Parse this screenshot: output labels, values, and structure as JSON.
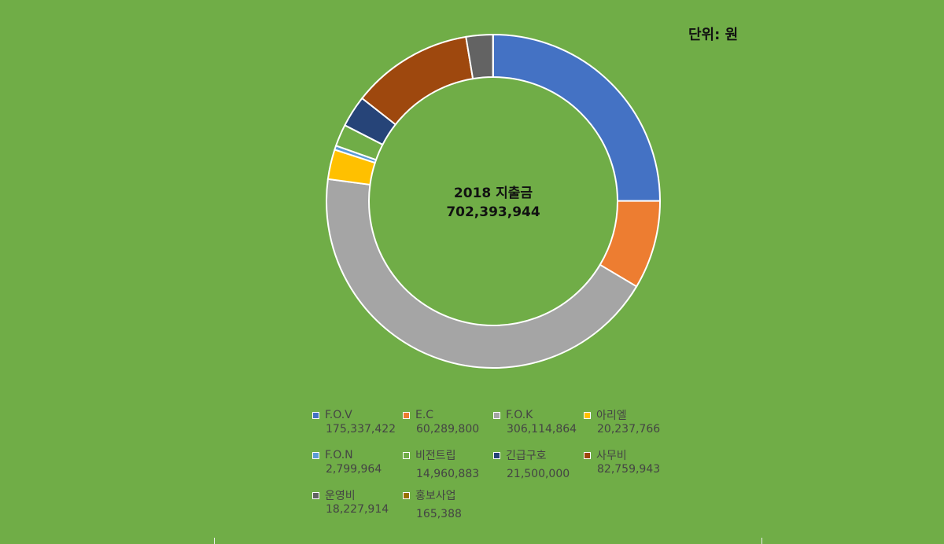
{
  "unit_label": "단위: 원",
  "chart_data": {
    "type": "pie",
    "donut": true,
    "center_title": "2018 지출금",
    "center_value": "702,393,944",
    "legend_placement": "bottom",
    "slices": [
      {
        "name": "F.O.V",
        "value": 175337422,
        "value_label": "175,337,422",
        "color": "#4472C4"
      },
      {
        "name": "E.C",
        "value": 60289800,
        "value_label": "60,289,800",
        "color": "#ED7D31"
      },
      {
        "name": "F.O.K",
        "value": 306114864,
        "value_label": "306,114,864",
        "color": "#A5A5A5"
      },
      {
        "name": "아리엘",
        "value": 20237766,
        "value_label": "20,237,766",
        "color": "#FFC000"
      },
      {
        "name": "F.O.N",
        "value": 2799964,
        "value_label": "2,799,964",
        "color": "#5B9BD5"
      },
      {
        "name": "비전트립",
        "value": 14960883,
        "value_label": "14,960,883",
        "color": "#70AD47"
      },
      {
        "name": "긴급구호",
        "value": 21500000,
        "value_label": "21,500,000",
        "color": "#264478"
      },
      {
        "name": "사무비",
        "value": 82759943,
        "value_label": "82,759,943",
        "color": "#9E480E"
      },
      {
        "name": "운영비",
        "value": 18227914,
        "value_label": "18,227,914",
        "color": "#636363"
      },
      {
        "name": "홍보사업",
        "value": 165388,
        "value_label": "165,388",
        "color": "#997300"
      }
    ]
  }
}
